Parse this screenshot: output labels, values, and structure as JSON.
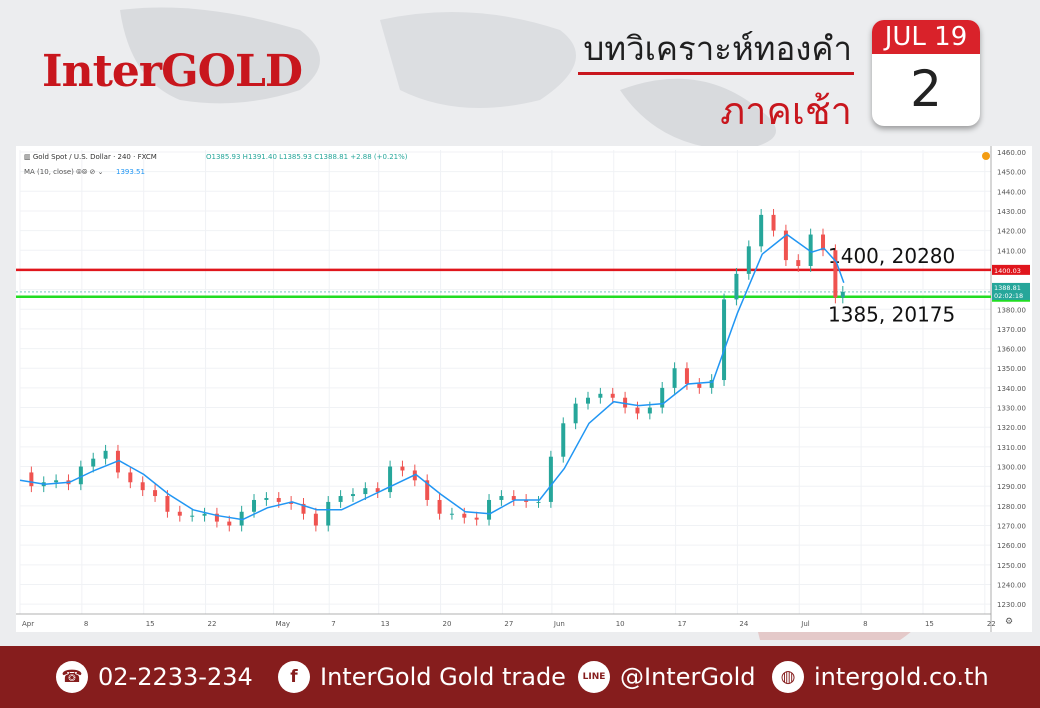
{
  "brand": {
    "logo": "InterGOLD"
  },
  "header": {
    "title": "บทวิเคราะห์ทองคำ",
    "subtitle": "ภาคเช้า"
  },
  "calendar": {
    "month_day": "JUL 19",
    "day": "2"
  },
  "colors": {
    "brand_red": "#c8161d",
    "footer_bg": "#861d1d",
    "resistance": "#e0161d",
    "support": "#22dd22",
    "ma": "#2196f3",
    "up": "#26a69a",
    "down": "#ef5350"
  },
  "chart_data": {
    "type": "candlestick",
    "legend_symbol": "Gold Spot / U.S. Dollar · 240 · FXCM",
    "legend_ohlc": {
      "o": "O1385.93",
      "h": "H1391.40",
      "l": "L1385.93",
      "c": "C1388.81",
      "chg": "+2.88 (+0.21%)"
    },
    "ma_label": "MA (10, close)",
    "ma_value": "1393.51",
    "ylim": [
      1225,
      1461
    ],
    "y_ticks": [
      1230,
      1240,
      1250,
      1260,
      1270,
      1280,
      1290,
      1300,
      1310,
      1320,
      1330,
      1340,
      1350,
      1360,
      1370,
      1380,
      1390,
      1400,
      1410,
      1420,
      1430,
      1440,
      1450,
      1460
    ],
    "y_tick_labels": [
      "1230.00",
      "1240.00",
      "1250.00",
      "1260.00",
      "1270.00",
      "1280.00",
      "1290.00",
      "1300.00",
      "1310.00",
      "1320.00",
      "1330.00",
      "1340.00",
      "1350.00",
      "1360.00",
      "1370.00",
      "1380.00",
      "1390.00",
      "1400.00",
      "1410.00",
      "1420.00",
      "1430.00",
      "1440.00",
      "1450.00",
      "1460.00"
    ],
    "x_ticks": [
      {
        "label": "Apr",
        "t": 0
      },
      {
        "label": "8",
        "t": 5
      },
      {
        "label": "15",
        "t": 10
      },
      {
        "label": "22",
        "t": 15
      },
      {
        "label": "May",
        "t": 20.5
      },
      {
        "label": "7",
        "t": 25
      },
      {
        "label": "13",
        "t": 29
      },
      {
        "label": "20",
        "t": 34
      },
      {
        "label": "27",
        "t": 39
      },
      {
        "label": "Jun",
        "t": 43
      },
      {
        "label": "10",
        "t": 48
      },
      {
        "label": "17",
        "t": 53
      },
      {
        "label": "24",
        "t": 58
      },
      {
        "label": "Jul",
        "t": 63
      },
      {
        "label": "8",
        "t": 68
      },
      {
        "label": "15",
        "t": 73
      },
      {
        "label": "22",
        "t": 78
      }
    ],
    "xlim": [
      0,
      78.5
    ],
    "closes": [
      {
        "t": 0,
        "c": 1297
      },
      {
        "t": 1,
        "c": 1290
      },
      {
        "t": 2,
        "c": 1292
      },
      {
        "t": 3,
        "c": 1293
      },
      {
        "t": 4,
        "c": 1291
      },
      {
        "t": 5,
        "c": 1300
      },
      {
        "t": 6,
        "c": 1304
      },
      {
        "t": 7,
        "c": 1308
      },
      {
        "t": 8,
        "c": 1297
      },
      {
        "t": 9,
        "c": 1292
      },
      {
        "t": 10,
        "c": 1288
      },
      {
        "t": 11,
        "c": 1285
      },
      {
        "t": 12,
        "c": 1277
      },
      {
        "t": 13,
        "c": 1275
      },
      {
        "t": 14,
        "c": 1275
      },
      {
        "t": 15,
        "c": 1276
      },
      {
        "t": 16,
        "c": 1272
      },
      {
        "t": 17,
        "c": 1270
      },
      {
        "t": 18,
        "c": 1277
      },
      {
        "t": 19,
        "c": 1283
      },
      {
        "t": 20,
        "c": 1284
      },
      {
        "t": 21,
        "c": 1282
      },
      {
        "t": 22,
        "c": 1281
      },
      {
        "t": 23,
        "c": 1276
      },
      {
        "t": 24,
        "c": 1270
      },
      {
        "t": 25,
        "c": 1282
      },
      {
        "t": 26,
        "c": 1285
      },
      {
        "t": 27,
        "c": 1286
      },
      {
        "t": 28,
        "c": 1289
      },
      {
        "t": 29,
        "c": 1287
      },
      {
        "t": 30,
        "c": 1300
      },
      {
        "t": 31,
        "c": 1298
      },
      {
        "t": 32,
        "c": 1293
      },
      {
        "t": 33,
        "c": 1283
      },
      {
        "t": 34,
        "c": 1276
      },
      {
        "t": 35,
        "c": 1276
      },
      {
        "t": 36,
        "c": 1274
      },
      {
        "t": 37,
        "c": 1273
      },
      {
        "t": 38,
        "c": 1283
      },
      {
        "t": 39,
        "c": 1285
      },
      {
        "t": 40,
        "c": 1283
      },
      {
        "t": 41,
        "c": 1282
      },
      {
        "t": 42,
        "c": 1282
      },
      {
        "t": 43,
        "c": 1305
      },
      {
        "t": 44,
        "c": 1322
      },
      {
        "t": 45,
        "c": 1332
      },
      {
        "t": 46,
        "c": 1335
      },
      {
        "t": 47,
        "c": 1337
      },
      {
        "t": 48,
        "c": 1335
      },
      {
        "t": 49,
        "c": 1330
      },
      {
        "t": 50,
        "c": 1327
      },
      {
        "t": 51,
        "c": 1330
      },
      {
        "t": 52,
        "c": 1340
      },
      {
        "t": 53,
        "c": 1350
      },
      {
        "t": 54,
        "c": 1342
      },
      {
        "t": 55,
        "c": 1340
      },
      {
        "t": 56,
        "c": 1344
      },
      {
        "t": 57,
        "c": 1385
      },
      {
        "t": 58,
        "c": 1398
      },
      {
        "t": 59,
        "c": 1412
      },
      {
        "t": 60,
        "c": 1428
      },
      {
        "t": 61,
        "c": 1420
      },
      {
        "t": 62,
        "c": 1405
      },
      {
        "t": 63,
        "c": 1402
      },
      {
        "t": 64,
        "c": 1418
      },
      {
        "t": 65,
        "c": 1410
      },
      {
        "t": 66,
        "c": 1386
      },
      {
        "t": 66.6,
        "c": 1388.81
      }
    ],
    "ma_points": [
      {
        "t": 0,
        "c": 1293
      },
      {
        "t": 2,
        "c": 1291
      },
      {
        "t": 4,
        "c": 1292
      },
      {
        "t": 6,
        "c": 1298
      },
      {
        "t": 8,
        "c": 1303
      },
      {
        "t": 10,
        "c": 1296
      },
      {
        "t": 12,
        "c": 1286
      },
      {
        "t": 14,
        "c": 1278
      },
      {
        "t": 16,
        "c": 1275
      },
      {
        "t": 18,
        "c": 1273
      },
      {
        "t": 20,
        "c": 1279
      },
      {
        "t": 22,
        "c": 1282
      },
      {
        "t": 24,
        "c": 1278
      },
      {
        "t": 26,
        "c": 1278
      },
      {
        "t": 28,
        "c": 1284
      },
      {
        "t": 30,
        "c": 1290
      },
      {
        "t": 32,
        "c": 1296
      },
      {
        "t": 34,
        "c": 1286
      },
      {
        "t": 36,
        "c": 1277
      },
      {
        "t": 38,
        "c": 1276
      },
      {
        "t": 40,
        "c": 1283
      },
      {
        "t": 42,
        "c": 1283
      },
      {
        "t": 44,
        "c": 1299
      },
      {
        "t": 46,
        "c": 1322
      },
      {
        "t": 48,
        "c": 1333
      },
      {
        "t": 50,
        "c": 1331
      },
      {
        "t": 52,
        "c": 1332
      },
      {
        "t": 54,
        "c": 1342
      },
      {
        "t": 56,
        "c": 1343
      },
      {
        "t": 58,
        "c": 1378
      },
      {
        "t": 60,
        "c": 1408
      },
      {
        "t": 62,
        "c": 1418
      },
      {
        "t": 64,
        "c": 1409
      },
      {
        "t": 65,
        "c": 1411
      },
      {
        "t": 66,
        "c": 1404
      },
      {
        "t": 66.6,
        "c": 1393.51
      }
    ],
    "levels": [
      {
        "value": 1400.03,
        "tag": "1400.03",
        "annotation": "1400, 20280",
        "color": "#e0161d"
      },
      {
        "value": 1386.36,
        "tag": "1386.36",
        "annotation": "1385, 20175",
        "color": "#22dd22"
      }
    ],
    "price_tag": {
      "value": 1388.81,
      "label": "1388.81",
      "timer": "02:02:18"
    }
  },
  "footer": {
    "phone": "02-2233-234",
    "facebook": "InterGold Gold trade",
    "line": "@InterGold",
    "website": "intergold.co.th",
    "line_icon_text": "LINE"
  }
}
